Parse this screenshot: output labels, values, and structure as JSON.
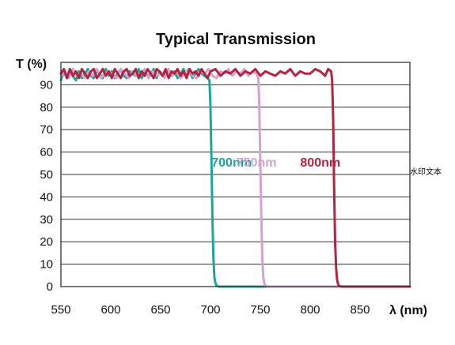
{
  "chart_data": {
    "type": "line",
    "title": "Typical Transmission",
    "xlabel": "λ (nm)",
    "ylabel": "T (%)",
    "xlim": [
      550,
      900
    ],
    "ylim": [
      0,
      100
    ],
    "x_ticks": [
      550,
      600,
      650,
      700,
      750,
      800,
      850
    ],
    "y_ticks": [
      0,
      10,
      20,
      30,
      40,
      50,
      60,
      70,
      80,
      90
    ],
    "grid": true,
    "legend": "inline labels",
    "series": [
      {
        "name": "700nm",
        "color": "#1aa89a",
        "x": [
          550,
          553,
          556,
          559,
          562,
          565,
          568,
          571,
          574,
          577,
          580,
          583,
          586,
          589,
          592,
          595,
          598,
          601,
          604,
          607,
          610,
          613,
          616,
          619,
          622,
          625,
          628,
          631,
          634,
          637,
          640,
          643,
          646,
          649,
          652,
          655,
          658,
          661,
          664,
          667,
          670,
          673,
          676,
          679,
          682,
          685,
          688,
          691,
          694,
          697,
          699,
          700,
          701,
          702,
          703,
          704,
          705,
          706,
          708,
          712,
          720,
          900
        ],
        "y": [
          92,
          96,
          93,
          97,
          94,
          92,
          96,
          93,
          95,
          97,
          94,
          93,
          96,
          95,
          93,
          97,
          94,
          96,
          93,
          95,
          97,
          94,
          93,
          96,
          95,
          94,
          97,
          93,
          96,
          94,
          95,
          97,
          93,
          96,
          94,
          95,
          97,
          94,
          96,
          93,
          95,
          97,
          94,
          96,
          93,
          95,
          97,
          95,
          94,
          93,
          92,
          80,
          55,
          30,
          12,
          4,
          1.5,
          0.5,
          0,
          0,
          0,
          0
        ]
      },
      {
        "name": "750nm",
        "color": "#d4a2d2",
        "x": [
          550,
          554,
          558,
          562,
          566,
          570,
          574,
          578,
          582,
          586,
          590,
          594,
          598,
          602,
          606,
          610,
          614,
          618,
          622,
          626,
          630,
          634,
          638,
          642,
          646,
          650,
          654,
          658,
          662,
          666,
          670,
          674,
          678,
          682,
          686,
          690,
          694,
          698,
          702,
          706,
          710,
          714,
          718,
          722,
          726,
          730,
          734,
          738,
          742,
          746,
          748,
          749,
          750,
          751,
          752,
          753,
          754,
          755,
          757,
          762,
          770,
          900
        ],
        "y": [
          94,
          96,
          93,
          97,
          94,
          95,
          93,
          96,
          94,
          97,
          93,
          95,
          96,
          94,
          93,
          97,
          95,
          93,
          96,
          94,
          95,
          97,
          93,
          96,
          94,
          95,
          93,
          97,
          94,
          96,
          93,
          95,
          97,
          94,
          93,
          96,
          95,
          97,
          94,
          93,
          96,
          95,
          97,
          94,
          96,
          95,
          97,
          94,
          96,
          95,
          93,
          80,
          55,
          30,
          12,
          4,
          1.5,
          0.5,
          0,
          0,
          0,
          0
        ]
      },
      {
        "name": "800nm",
        "color": "#b42340",
        "x": [
          550,
          553,
          556,
          559,
          562,
          565,
          568,
          571,
          574,
          577,
          580,
          583,
          586,
          589,
          592,
          595,
          598,
          601,
          604,
          607,
          610,
          613,
          616,
          619,
          622,
          625,
          628,
          631,
          634,
          637,
          640,
          643,
          646,
          649,
          652,
          655,
          658,
          661,
          664,
          667,
          670,
          673,
          676,
          679,
          682,
          685,
          688,
          691,
          694,
          697,
          700,
          705,
          710,
          715,
          720,
          725,
          730,
          735,
          740,
          745,
          750,
          755,
          760,
          765,
          770,
          775,
          780,
          785,
          790,
          795,
          800,
          805,
          810,
          815,
          818,
          821,
          822,
          823,
          824,
          825,
          826,
          827,
          828,
          829,
          831,
          835,
          845,
          900
        ],
        "y": [
          95,
          97,
          93,
          97,
          94,
          96,
          93,
          97,
          95,
          93,
          96,
          97,
          93,
          95,
          97,
          94,
          96,
          93,
          97,
          95,
          93,
          96,
          97,
          94,
          95,
          97,
          93,
          96,
          94,
          97,
          95,
          93,
          97,
          96,
          94,
          97,
          93,
          96,
          95,
          97,
          94,
          96,
          93,
          97,
          95,
          96,
          94,
          97,
          95,
          93,
          96,
          97,
          94,
          96,
          95,
          97,
          94,
          96,
          95,
          97,
          94,
          96,
          95,
          94,
          96,
          95,
          97,
          94,
          96,
          95,
          95,
          97,
          96,
          94,
          97,
          96,
          92,
          75,
          45,
          20,
          8,
          3,
          1,
          0.3,
          0,
          0,
          0,
          0
        ]
      }
    ]
  },
  "series_labels": [
    {
      "text": "700nm",
      "color": "#1aa89a",
      "x": 701,
      "y": 50
    },
    {
      "text": "750nm",
      "color": "#d4a2d2",
      "x": 726,
      "y": 50
    },
    {
      "text": "800nm",
      "color": "#b42340",
      "x": 790,
      "y": 50
    }
  ],
  "watermark": "水印文本"
}
